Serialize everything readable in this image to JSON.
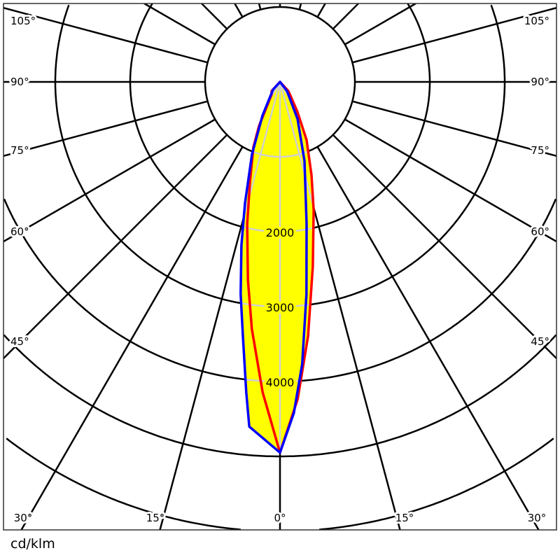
{
  "chart_data": {
    "type": "line",
    "coordinate_system": "polar",
    "unit_label": "cd/klm",
    "angle_labels": {
      "left": [
        "105°",
        "90°",
        "75°",
        "60°",
        "45°"
      ],
      "bottom": [
        "30°",
        "15°",
        "0°",
        "15°",
        "30°"
      ],
      "right": [
        "105°",
        "90°",
        "75°",
        "60°",
        "45°"
      ]
    },
    "angle_ticks_deg": [
      0,
      15,
      30,
      45,
      60,
      75,
      90,
      105,
      120,
      135,
      150,
      165,
      180
    ],
    "radial_ticks": [
      1000,
      2000,
      3000,
      4000,
      5000,
      6000,
      7000
    ],
    "radial_tick_labels": [
      "2000",
      "3000",
      "4000"
    ],
    "fill_color": "#ffff00",
    "series": [
      {
        "color": "#ff0000",
        "points": [
          [
            -42.7,
            165
          ],
          [
            -33.7,
            202
          ],
          [
            -25.5,
            652
          ],
          [
            -22.2,
            940
          ],
          [
            -16.7,
            1396
          ],
          [
            -13.0,
            1950
          ],
          [
            -9.2,
            2680
          ],
          [
            -6.5,
            3320
          ],
          [
            -3.2,
            4150
          ],
          [
            0,
            4950
          ],
          [
            3.2,
            4240
          ],
          [
            6.3,
            3415
          ],
          [
            10.1,
            2500
          ],
          [
            14.7,
            1770
          ],
          [
            18.7,
            1313
          ],
          [
            24.6,
            854
          ],
          [
            30.2,
            465
          ],
          [
            42.7,
            165
          ],
          [
            90,
            0
          ]
        ]
      },
      {
        "color": "#0000ff",
        "points": [
          [
            -90,
            0
          ],
          [
            -42,
            139
          ],
          [
            -27.5,
            506
          ],
          [
            -21.2,
            1035
          ],
          [
            -16.1,
            1685
          ],
          [
            -13.3,
            2240
          ],
          [
            -10.5,
            2880
          ],
          [
            -8.3,
            3430
          ],
          [
            -6.2,
            4170
          ],
          [
            -5.1,
            4620
          ],
          [
            0,
            4950
          ],
          [
            2.4,
            4425
          ],
          [
            4.5,
            3780
          ],
          [
            7.1,
            2855
          ],
          [
            10.6,
            1930
          ],
          [
            17.2,
            1106
          ],
          [
            25.3,
            548
          ],
          [
            37.6,
            153
          ],
          [
            90,
            0
          ]
        ]
      }
    ]
  }
}
